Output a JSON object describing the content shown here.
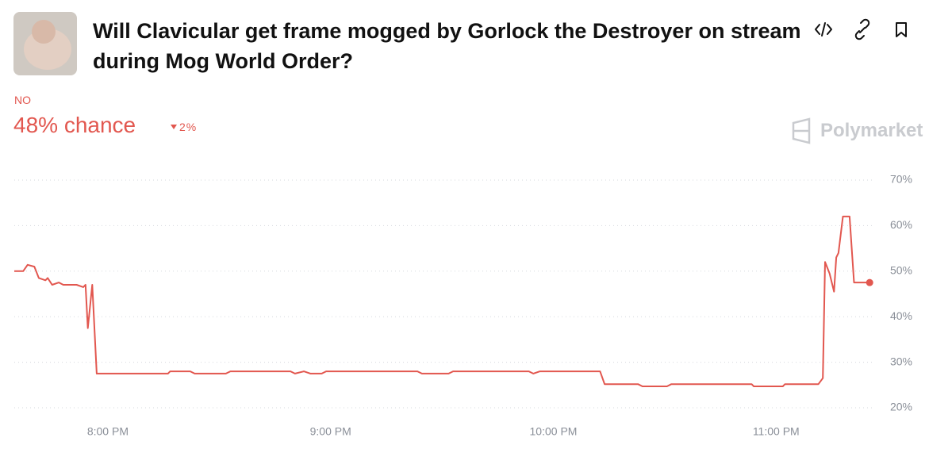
{
  "header": {
    "title": "Will Clavicular get frame mogged by Gorlock the Destroyer on stream during Mog World Order?",
    "outcome": "NO",
    "chance": "48% chance",
    "change": "2%",
    "brand": "Polymarket"
  },
  "chart_data": {
    "type": "line",
    "color": "#e2574f",
    "x": [
      19.58,
      19.62,
      19.64,
      19.67,
      19.69,
      19.72,
      19.73,
      19.75,
      19.78,
      19.8,
      19.86,
      19.89,
      19.9,
      19.91,
      19.93,
      19.95,
      20.27,
      20.28,
      20.37,
      20.39,
      20.53,
      20.55,
      20.82,
      20.84,
      20.88,
      20.91,
      20.96,
      20.98,
      21.39,
      21.41,
      21.53,
      21.55,
      21.89,
      21.91,
      21.94,
      22.21,
      22.23,
      22.38,
      22.4,
      22.51,
      22.53,
      22.89,
      22.9,
      23.03,
      23.04,
      23.19,
      23.21,
      23.22,
      23.24,
      23.26,
      23.27,
      23.28,
      23.3,
      23.33,
      23.35,
      23.42
    ],
    "values": [
      50,
      50,
      51.4,
      51,
      48.5,
      48,
      48.5,
      47,
      47.5,
      47,
      47,
      46.5,
      47,
      37.5,
      47,
      27.5,
      27.5,
      28,
      28,
      27.5,
      27.5,
      28,
      28,
      27.5,
      28,
      27.5,
      27.5,
      28,
      28,
      27.5,
      27.5,
      28,
      28,
      27.5,
      28,
      28,
      25.2,
      25.2,
      24.7,
      24.7,
      25.2,
      25.2,
      24.7,
      24.7,
      25.2,
      25.2,
      26.5,
      52,
      49.5,
      45.5,
      53,
      54,
      62,
      62,
      47.5,
      47.5
    ],
    "xlim": [
      19.58,
      23.43
    ],
    "xticks": [
      {
        "value": 20,
        "label": "8:00 PM"
      },
      {
        "value": 21,
        "label": "9:00 PM"
      },
      {
        "value": 22,
        "label": "10:00 PM"
      },
      {
        "value": 23,
        "label": "11:00 PM"
      }
    ],
    "ylim": [
      20,
      70
    ],
    "yticks": [
      {
        "value": 20,
        "label": "20%"
      },
      {
        "value": 30,
        "label": "30%"
      },
      {
        "value": 40,
        "label": "40%"
      },
      {
        "value": 50,
        "label": "50%"
      },
      {
        "value": 60,
        "label": "60%"
      },
      {
        "value": 70,
        "label": "70%"
      }
    ],
    "grid": true
  }
}
